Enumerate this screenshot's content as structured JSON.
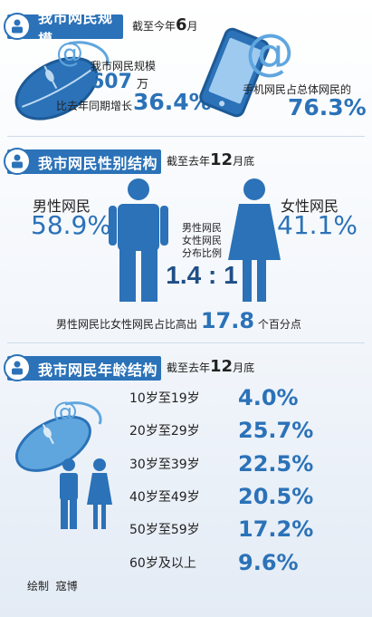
{
  "section1": {
    "title": "我市网民规模",
    "date_prefix": "截至今年",
    "date_num": "6",
    "date_suffix": "月",
    "scale_label": "我市网民规模",
    "scale_value": "607",
    "scale_unit": "万",
    "growth_label": "比去年同期增长",
    "growth_value": "36.4%",
    "mobile_label": "手机网民占总体网民的",
    "mobile_value": "76.3%"
  },
  "section2": {
    "title": "我市网民性别结构",
    "date_prefix": "截至去年",
    "date_num": "12",
    "date_suffix": "月底",
    "male_label": "男性网民",
    "male_value": "58.9%",
    "female_label": "女性网民",
    "female_value": "41.1%",
    "ratio_caption_1": "男性网民",
    "ratio_caption_2": "女性网民",
    "ratio_caption_3": "分布比例",
    "ratio_value": "1.4 : 1",
    "diff_prefix": "男性网民比女性网民占比高出",
    "diff_value": "17.8",
    "diff_suffix": "个百分点"
  },
  "section3": {
    "title": "我市网民年龄结构",
    "date_prefix": "截至去年",
    "date_num": "12",
    "date_suffix": "月底",
    "rows": [
      {
        "label": "10岁至19岁",
        "value": "4.0%"
      },
      {
        "label": "20岁至29岁",
        "value": "25.7%"
      },
      {
        "label": "30岁至39岁",
        "value": "22.5%"
      },
      {
        "label": "40岁至49岁",
        "value": "20.5%"
      },
      {
        "label": "50岁至59岁",
        "value": "17.2%"
      },
      {
        "label": "60岁及以上",
        "value": "9.6%"
      }
    ]
  },
  "credit": "绘制  寇博",
  "colors": {
    "accent": "#2b72b8",
    "light_accent": "#5fa6df"
  }
}
